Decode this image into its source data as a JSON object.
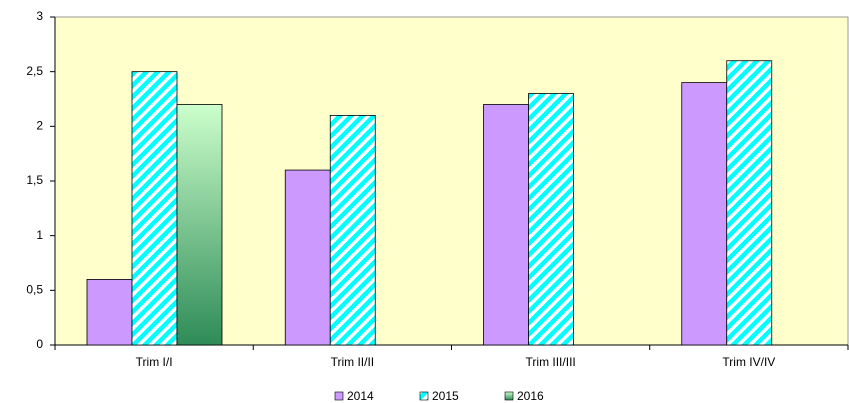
{
  "chart_data": {
    "type": "bar",
    "categories": [
      "Trim I/I",
      "Trim II/II",
      "Trim III/III",
      "Trim IV/IV"
    ],
    "series": [
      {
        "name": "2014",
        "color": "#cc99ff",
        "fill_style": "solid",
        "values": [
          0.6,
          1.6,
          2.2,
          2.4
        ]
      },
      {
        "name": "2015",
        "color": "#00ffff",
        "fill_style": "hatch",
        "values": [
          2.5,
          2.1,
          2.3,
          2.6
        ]
      },
      {
        "name": "2016",
        "color": "#2e8b57",
        "fill_style": "gradient",
        "values": [
          2.2,
          null,
          null,
          null
        ]
      }
    ],
    "ylim": [
      0,
      3
    ],
    "yticks": [
      0,
      {
        "value": 0.5,
        "label": "0,5"
      },
      1,
      {
        "value": 1.5,
        "label": "1,5"
      },
      2,
      {
        "value": 2.5,
        "label": "2,5"
      },
      3
    ],
    "grid": false,
    "legend": "bottom"
  }
}
